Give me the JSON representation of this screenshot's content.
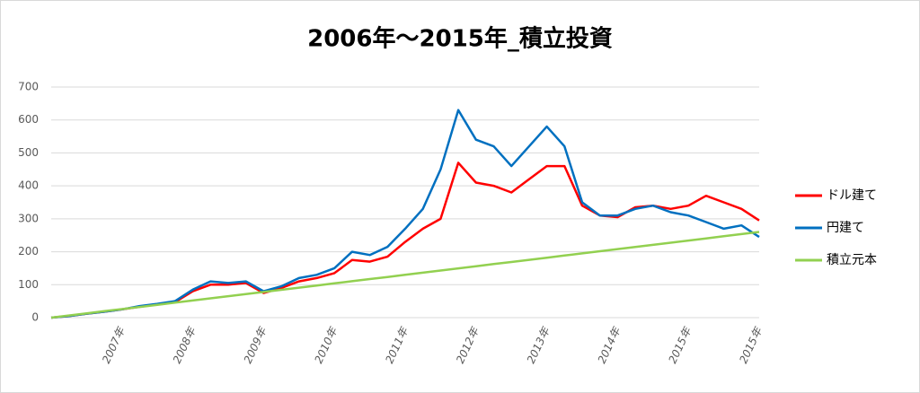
{
  "chart_data": {
    "type": "line",
    "title": "2006年～2015年_積立投資",
    "categories": [
      null,
      null,
      null,
      null,
      "2007年",
      null,
      null,
      null,
      "2008年",
      null,
      null,
      null,
      "2009年",
      null,
      null,
      null,
      "2010年",
      null,
      null,
      null,
      "2011年",
      null,
      null,
      null,
      "2012年",
      null,
      null,
      null,
      "2013年",
      null,
      null,
      null,
      "2014年",
      null,
      null,
      null,
      "2015年",
      null,
      null,
      null,
      "2015年"
    ],
    "series": [
      {
        "name": "ドル建て",
        "color": "#ff0000",
        "values": [
          0,
          5,
          12,
          18,
          25,
          33,
          40,
          47,
          80,
          100,
          100,
          105,
          75,
          90,
          110,
          120,
          135,
          175,
          170,
          185,
          230,
          270,
          300,
          470,
          410,
          400,
          380,
          420,
          460,
          460,
          340,
          310,
          305,
          335,
          340,
          330,
          340,
          370,
          350,
          330,
          295
        ]
      },
      {
        "name": "円建て",
        "color": "#0070c0",
        "values": [
          0,
          5,
          12,
          18,
          25,
          35,
          42,
          50,
          85,
          110,
          105,
          110,
          80,
          95,
          120,
          130,
          150,
          200,
          190,
          215,
          270,
          330,
          450,
          630,
          540,
          520,
          460,
          520,
          580,
          520,
          350,
          310,
          310,
          330,
          340,
          320,
          310,
          290,
          270,
          280,
          245
        ]
      },
      {
        "name": "積立元本",
        "color": "#92d050",
        "values": [
          0,
          6.5,
          13,
          19.5,
          26,
          32.5,
          39,
          45.5,
          52,
          58.5,
          65,
          71.5,
          78,
          84.5,
          91,
          97.5,
          104,
          110.5,
          117,
          123.5,
          130,
          136.5,
          143,
          149.5,
          156,
          162.5,
          169,
          175.5,
          182,
          188.5,
          195,
          201.5,
          208,
          214.5,
          221,
          227.5,
          234,
          240.5,
          247,
          253.5,
          260
        ]
      }
    ],
    "ylim": [
      0,
      700
    ],
    "yticks": [
      0,
      100,
      200,
      300,
      400,
      500,
      600,
      700
    ],
    "grid": true,
    "legend": "right"
  }
}
